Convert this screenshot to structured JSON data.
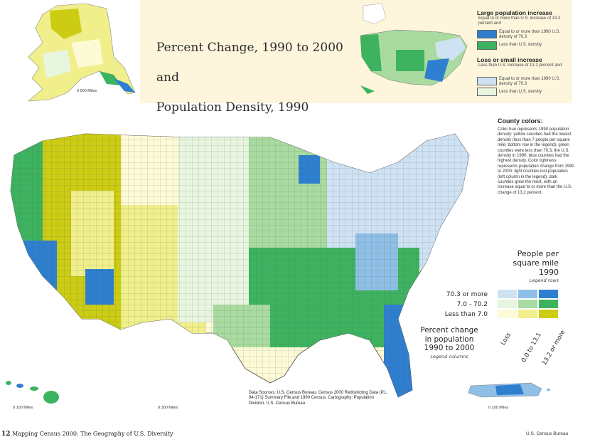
{
  "title": {
    "line1": "Percent Change, 1990 to 2000",
    "line2": "and",
    "line3": "Population Density, 1990"
  },
  "top_legend": {
    "large_increase_heading": "Large population increase",
    "large_increase_note": "Equal to or more than U.S. increase of 13.2 percent and",
    "large_dense_label": "Equal to or more than 1990 U.S. density of 70.3",
    "large_sparse_label": "Less than U.S. density",
    "loss_heading": "Loss or small increase",
    "loss_note": "Less than U.S. increase of 13.2 percent and",
    "loss_dense_label": "Equal to or more than 1990 U.S. density of 70.3",
    "loss_sparse_label": "Less than U.S. density"
  },
  "county_colors": {
    "heading": "County colors:",
    "body": "Color hue represents 1990 population density: yellow counties had the lowest density (less than 7 people per square mile; bottom row in the legend); green counties were less than 70.3, the U.S. density in 1990; blue counties had the highest density. Color lightness represents population change from 1990 to 2000: light counties lost population (left column in the legend); dark counties grew the most, with an increase equal to or more than the U.S. change of 13.2 percent."
  },
  "people_legend": {
    "title": "People per\nsquare mile\n1990",
    "subtitle": "Legend rows",
    "rows": [
      "70.3 or more",
      "7.0 - 70.2",
      "Less than 7.0"
    ]
  },
  "pct_legend": {
    "title": "Percent change\nin population\n1990 to 2000",
    "subtitle": "Legend columns",
    "columns": [
      "Loss",
      "0.0 to 13.1",
      "13.2 or more"
    ]
  },
  "legend_colors": [
    [
      "#cfe2f3",
      "#8fbfe6",
      "#2e7fcf"
    ],
    [
      "#e8f5df",
      "#a9dba0",
      "#3db360"
    ],
    [
      "#fdfbd6",
      "#f0ef8c",
      "#cccc14"
    ]
  ],
  "sources": {
    "text": "Data Sources: U.S. Census Bureau, Census 2000 Redistricting Data (P.L. 94-171) Summary File and 1990 Census. Cartography: Population Division, U.S. Census Bureau"
  },
  "scales": {
    "alaska": "0   500 Miles",
    "hawaii": "0   100 Miles",
    "conus": "0   300 Miles",
    "puerto_rico": "0   100 Miles"
  },
  "footer": {
    "page_number": "12",
    "left": "Mapping Census 2000: The Geography of U.S. Diversity",
    "right": "U.S. Census Bureau"
  }
}
